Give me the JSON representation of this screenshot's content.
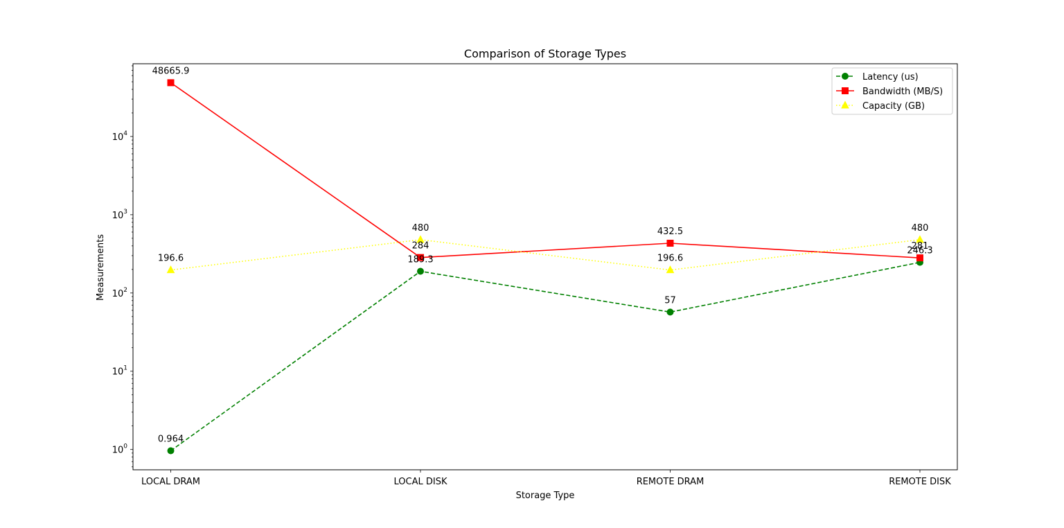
{
  "chart_data": {
    "type": "line",
    "title": "Comparison of Storage Types",
    "xlabel": "Storage Type",
    "ylabel": "Measurements",
    "yscale": "log",
    "ylim": [
      0.55,
      85000
    ],
    "categories": [
      "LOCAL DRAM",
      "LOCAL DISK",
      "REMOTE DRAM",
      "REMOTE DISK"
    ],
    "series": [
      {
        "name": "Latency (us)",
        "values": [
          0.964,
          189.3,
          57,
          246.3
        ],
        "labels": [
          "0.964",
          "189.3",
          "57",
          "246.3"
        ],
        "color": "#008000",
        "linestyle": "dashed",
        "marker": "circle"
      },
      {
        "name": "Bandwidth (MB/S)",
        "values": [
          48665.9,
          284,
          432.5,
          281
        ],
        "labels": [
          "48665.9",
          "284",
          "432.5",
          "281"
        ],
        "color": "#ff0000",
        "linestyle": "solid",
        "marker": "square"
      },
      {
        "name": "Capacity (GB)",
        "values": [
          196.6,
          480,
          196.6,
          480
        ],
        "labels": [
          "196.6",
          "480",
          "196.6",
          "480"
        ],
        "color": "#ffff00",
        "linestyle": "dotted",
        "marker": "triangle"
      }
    ],
    "yticks": [
      {
        "value": 1,
        "base": "10",
        "exp": "0"
      },
      {
        "value": 10,
        "base": "10",
        "exp": "1"
      },
      {
        "value": 100,
        "base": "10",
        "exp": "2"
      },
      {
        "value": 1000,
        "base": "10",
        "exp": "3"
      },
      {
        "value": 10000,
        "base": "10",
        "exp": "4"
      }
    ],
    "grid": false,
    "legend_position": "top-right"
  }
}
